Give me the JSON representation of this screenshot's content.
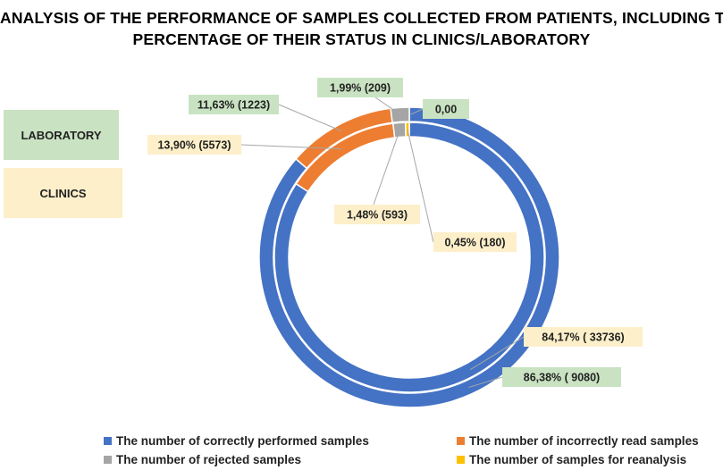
{
  "title_lines": [
    "ANALYSIS OF THE PERFORMANCE OF SAMPLES COLLECTED FROM PATIENTS, INCLUDING THE",
    "PERCENTAGE OF THEIR STATUS IN CLINICS/LABORATORY"
  ],
  "key": {
    "laboratory": {
      "label": "LABORATORY",
      "color": "#c9e3c2"
    },
    "clinics": {
      "label": "CLINICS",
      "color": "#fdefc9"
    }
  },
  "colors": {
    "correct": "#4472c4",
    "incorrect": "#ed7d31",
    "rejected": "#a5a5a5",
    "reanalysis": "#ffc000",
    "leader": "#a6a6a6"
  },
  "chart_data": {
    "type": "donut",
    "categories": [
      "The number of correctly performed samples",
      "The number of incorrectly read samples",
      "The number of rejected samples",
      "The number of samples for reanalysis"
    ],
    "series": [
      {
        "name": "LABORATORY",
        "ring": "outer",
        "values": [
          9080,
          1223,
          209,
          0
        ],
        "labels": [
          "86,38% ( 9080)",
          "11,63% (1223)",
          "1,99% (209)",
          "0,00"
        ]
      },
      {
        "name": "CLINICS",
        "ring": "inner",
        "values": [
          33736,
          5573,
          593,
          180
        ],
        "labels": [
          "84,17% ( 33736)",
          "13,90% (5573)",
          "1,48% (593)",
          "0,45% (180)"
        ]
      }
    ],
    "legend_position": "bottom"
  }
}
